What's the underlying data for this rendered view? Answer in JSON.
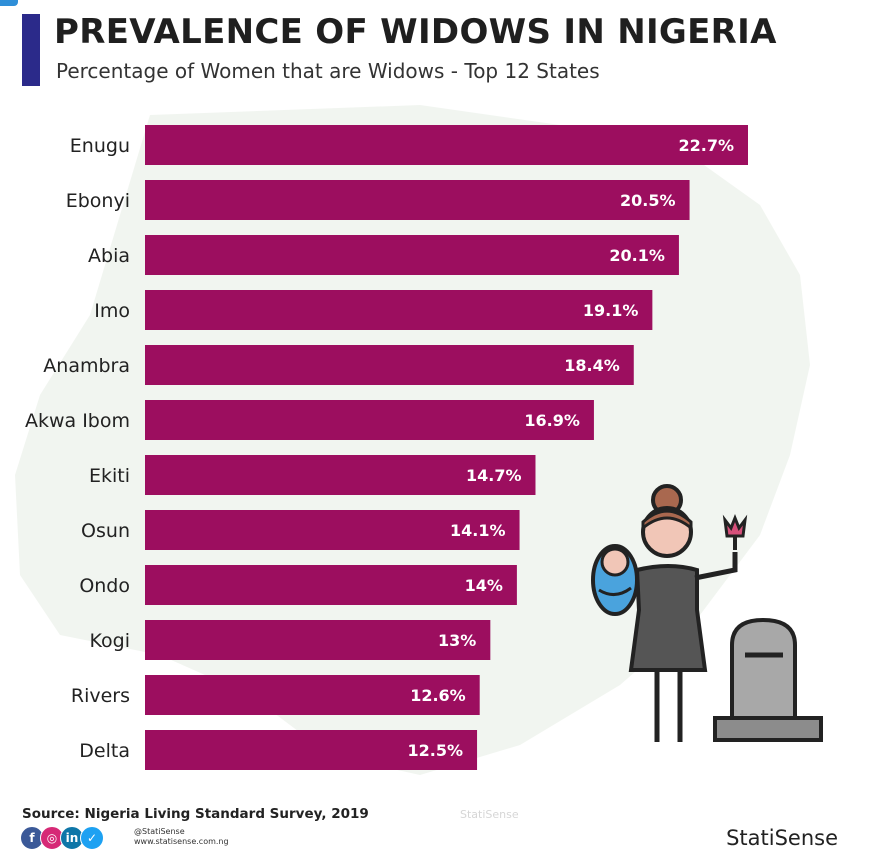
{
  "header": {
    "title": "PREVALENCE OF WIDOWS IN NIGERIA",
    "subtitle": "Percentage of Women that are Widows - Top 12 States",
    "accent_color": "#2b2a8a"
  },
  "chart_data": {
    "type": "bar",
    "orientation": "horizontal",
    "title": "PREVALENCE OF WIDOWS IN NIGERIA",
    "subtitle": "Percentage of Women that are Widows - Top 12 States",
    "categories": [
      "Enugu",
      "Ebonyi",
      "Abia",
      "Imo",
      "Anambra",
      "Akwa Ibom",
      "Ekiti",
      "Osun",
      "Ondo",
      "Kogi",
      "Rivers",
      "Delta"
    ],
    "values": [
      22.7,
      20.5,
      20.1,
      19.1,
      18.4,
      16.9,
      14.7,
      14.1,
      14,
      13,
      12.6,
      12.5
    ],
    "value_labels": [
      "22.7%",
      "20.5%",
      "20.1%",
      "19.1%",
      "18.4%",
      "16.9%",
      "14.7%",
      "14.1%",
      "14%",
      "13%",
      "12.6%",
      "12.5%"
    ],
    "unit": "%",
    "bar_color": "#9c0e5f",
    "label_color": "#ffffff",
    "xlim": [
      0,
      22.7
    ],
    "grid": false,
    "legend": "none"
  },
  "footer": {
    "source": "Source: Nigeria Living Standard Survey, 2019",
    "social_handle": "@StatiSense",
    "website": "www.statisense.com.ng",
    "brand": "StatiSense",
    "watermark": "StatiSense",
    "socials": [
      {
        "icon": "facebook-icon",
        "glyph": "f",
        "color": "#3b5998"
      },
      {
        "icon": "instagram-icon",
        "glyph": "◎",
        "color": "#d62976"
      },
      {
        "icon": "linkedin-icon",
        "glyph": "in",
        "color": "#0e76a8"
      },
      {
        "icon": "twitter-icon",
        "glyph": "✓",
        "color": "#1da1f2"
      }
    ]
  }
}
